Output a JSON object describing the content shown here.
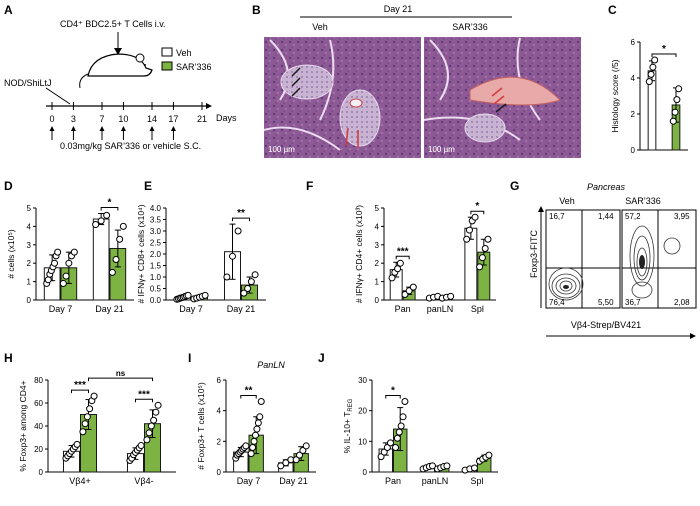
{
  "colors": {
    "veh": "#ffffff",
    "sar": "#7cb342",
    "bar_stroke": "#1a1a1a",
    "dot_fill": "#ffffff",
    "gate": "#000000",
    "hist_red": "#d23c3c"
  },
  "panel_a": {
    "letter": "A",
    "injection": "CD4⁺ BDC2.5+ T Cells i.v.",
    "strain": "NOD/ShiLtJ",
    "legend": [
      {
        "label": "Veh",
        "color": "#ffffff"
      },
      {
        "label": "SAR’336",
        "color": "#7cb342"
      }
    ],
    "timeline_days": [
      "0",
      "3",
      "7",
      "10",
      "14",
      "17",
      "21"
    ],
    "days_label": "Days",
    "dose": "0.03mg/kg SAR’336 or vehicle S.C."
  },
  "panel_b": {
    "letter": "B",
    "header": "Day 21",
    "veh_label": "Veh",
    "sar_label": "SAR’336",
    "scalebar": "100 µm"
  },
  "panel_g": {
    "letter": "G",
    "title": "Pancreas",
    "veh_label": "Veh",
    "sar_label": "SAR’336",
    "ylabel": "Foxp3-FITC",
    "xlabel": "Vβ4-Strep/BV421",
    "veh_quadrants": [
      "16,7",
      "1,44",
      "76,4",
      "5,50"
    ],
    "sar_quadrants": [
      "57,2",
      "3,95",
      "36,7",
      "2,08"
    ]
  },
  "chart_data": [
    {
      "id": "C",
      "type": "bar",
      "ylabel": "Histology score (/5)",
      "ylim": [
        0,
        6
      ],
      "yticks": [
        "0",
        "2",
        "4",
        "6"
      ],
      "categories": [
        ""
      ],
      "groups": [
        [
          {
            "value": 4.4,
            "sd": 0.55,
            "color": "#ffffff",
            "points": [
              3.8,
              4.2,
              4.6,
              5.0
            ]
          }
        ],
        [
          {
            "value": 2.5,
            "sd": 0.95,
            "color": "#7cb342",
            "points": [
              1.6,
              2.1,
              2.8,
              3.4
            ]
          }
        ]
      ],
      "annotations": [
        {
          "text": "*",
          "between": [
            [
              0,
              0
            ],
            [
              1,
              0
            ]
          ]
        }
      ]
    },
    {
      "id": "D",
      "type": "bar",
      "ylabel": "# cells (x10⁵)",
      "ylim": [
        0,
        5
      ],
      "yticks": [
        "0",
        "1",
        "2",
        "3",
        "4",
        "5"
      ],
      "categories": [
        "Day 7",
        "Day 21"
      ],
      "groups": [
        [
          {
            "value": 1.75,
            "sd": 0.7,
            "color": "#ffffff",
            "points": [
              0.9,
              1.1,
              1.4,
              1.6,
              1.8,
              2.0,
              2.4,
              2.6
            ]
          },
          {
            "value": 1.75,
            "sd": 0.85,
            "color": "#7cb342",
            "points": [
              0.9,
              1.3,
              2.0,
              2.4,
              2.6
            ]
          }
        ],
        [
          {
            "value": 4.4,
            "sd": 0.3,
            "color": "#ffffff",
            "points": [
              4.1,
              4.3,
              4.6
            ]
          },
          {
            "value": 2.8,
            "sd": 1.0,
            "color": "#7cb342",
            "points": [
              1.5,
              2.2,
              3.3,
              4.0
            ]
          }
        ]
      ],
      "annotations": [
        {
          "text": "*",
          "between": [
            [
              1,
              0
            ],
            [
              1,
              1
            ]
          ]
        }
      ]
    },
    {
      "id": "E",
      "type": "bar",
      "ylabel": "# IFNγ+ CD8+ cells (x10⁴)",
      "ylim": [
        0,
        4
      ],
      "yticks": [
        "0.0",
        "0.5",
        "1.0",
        "1.5",
        "2.0",
        "2.5",
        "3.0",
        "3.5",
        "4.0"
      ],
      "categories": [
        "Day 7",
        "Day 21"
      ],
      "groups": [
        [
          {
            "value": 0.1,
            "sd": 0.06,
            "color": "#ffffff",
            "points": [
              0.03,
              0.05,
              0.08,
              0.1,
              0.12,
              0.15,
              0.18,
              0.2
            ]
          },
          {
            "value": 0.12,
            "sd": 0.07,
            "color": "#7cb342",
            "points": [
              0.05,
              0.08,
              0.12,
              0.16,
              0.2
            ]
          }
        ],
        [
          {
            "value": 2.1,
            "sd": 1.2,
            "color": "#ffffff",
            "points": [
              1.0,
              1.9,
              3.0
            ]
          },
          {
            "value": 0.65,
            "sd": 0.35,
            "color": "#7cb342",
            "points": [
              0.3,
              0.5,
              0.8,
              1.1
            ]
          }
        ]
      ],
      "annotations": [
        {
          "text": "**",
          "between": [
            [
              1,
              0
            ],
            [
              1,
              1
            ]
          ]
        }
      ]
    },
    {
      "id": "F",
      "type": "bar",
      "ylabel": "# IFNγ+ CD4+ cells (x10³)",
      "ylim": [
        0,
        5
      ],
      "yticks": [
        "0",
        "1",
        "2",
        "3",
        "4",
        "5"
      ],
      "categories": [
        "Pan",
        "panLN",
        "Spl"
      ],
      "groups": [
        [
          {
            "value": 1.65,
            "sd": 0.4,
            "color": "#ffffff",
            "points": [
              1.2,
              1.5,
              1.7,
              2.0
            ]
          },
          {
            "value": 0.5,
            "sd": 0.2,
            "color": "#7cb342",
            "points": [
              0.3,
              0.5,
              0.7
            ]
          }
        ],
        [
          {
            "value": 0.15,
            "sd": 0.05,
            "color": "#ffffff",
            "points": [
              0.1,
              0.15,
              0.2
            ]
          },
          {
            "value": 0.15,
            "sd": 0.05,
            "color": "#7cb342",
            "points": [
              0.1,
              0.15,
              0.2
            ]
          }
        ],
        [
          {
            "value": 3.9,
            "sd": 0.6,
            "color": "#ffffff",
            "points": [
              3.3,
              3.8,
              4.3,
              4.5
            ]
          },
          {
            "value": 2.6,
            "sd": 0.7,
            "color": "#7cb342",
            "points": [
              1.8,
              2.3,
              2.8,
              3.3
            ]
          }
        ]
      ],
      "annotations": [
        {
          "text": "***",
          "between": [
            [
              0,
              0
            ],
            [
              0,
              1
            ]
          ]
        },
        {
          "text": "*",
          "between": [
            [
              2,
              0
            ],
            [
              2,
              1
            ]
          ]
        }
      ]
    },
    {
      "id": "H",
      "type": "bar",
      "ylabel": "% Foxp3+ among CD4+",
      "ylim": [
        0,
        80
      ],
      "yticks": [
        "0",
        "20",
        "40",
        "60",
        "80"
      ],
      "categories": [
        "Vβ4+",
        "Vβ4-"
      ],
      "groups": [
        [
          {
            "value": 18,
            "sd": 5,
            "color": "#ffffff",
            "points": [
              12,
              14,
              16,
              18,
              20,
              22,
              24
            ]
          },
          {
            "value": 50,
            "sd": 13,
            "color": "#7cb342",
            "points": [
              35,
              42,
              48,
              55,
              62,
              66
            ]
          }
        ],
        [
          {
            "value": 16,
            "sd": 5,
            "color": "#ffffff",
            "points": [
              10,
              12,
              15,
              17,
              19,
              21,
              23
            ]
          },
          {
            "value": 42,
            "sd": 12,
            "color": "#7cb342",
            "points": [
              28,
              34,
              40,
              45,
              52,
              58
            ]
          }
        ]
      ],
      "annotations": [
        {
          "text": "***",
          "between": [
            [
              0,
              0
            ],
            [
              0,
              1
            ]
          ]
        },
        {
          "text": "***",
          "between": [
            [
              1,
              0
            ],
            [
              1,
              1
            ]
          ]
        },
        {
          "text": "ns",
          "between": [
            [
              0,
              1
            ],
            [
              1,
              1
            ]
          ]
        }
      ]
    },
    {
      "id": "I",
      "type": "bar",
      "title": "PanLN",
      "ylabel": "# Foxp3+ T cells (x10⁵)",
      "ylim": [
        0,
        6
      ],
      "yticks": [
        "0",
        "2",
        "4",
        "6"
      ],
      "categories": [
        "Day 7",
        "Day 21"
      ],
      "groups": [
        [
          {
            "value": 1.3,
            "sd": 0.3,
            "color": "#ffffff",
            "points": [
              0.9,
              1.1,
              1.2,
              1.3,
              1.4,
              1.5,
              1.6,
              1.7
            ]
          },
          {
            "value": 2.4,
            "sd": 1.2,
            "color": "#7cb342",
            "points": [
              1.2,
              1.6,
              2.0,
              2.4,
              2.8,
              3.2,
              3.6,
              4.6
            ]
          }
        ],
        [
          {
            "value": 0.6,
            "sd": 0.2,
            "color": "#ffffff",
            "points": [
              0.4,
              0.6,
              0.8
            ]
          },
          {
            "value": 1.2,
            "sd": 0.45,
            "color": "#7cb342",
            "points": [
              0.8,
              1.1,
              1.4,
              1.7
            ]
          }
        ]
      ],
      "annotations": [
        {
          "text": "**",
          "between": [
            [
              0,
              0
            ],
            [
              0,
              1
            ]
          ]
        }
      ]
    },
    {
      "id": "J",
      "type": "bar",
      "ylabel": "% IL-10+ T_REG",
      "ylim": [
        0,
        30
      ],
      "yticks": [
        "0",
        "10",
        "20",
        "30"
      ],
      "categories": [
        "Pan",
        "panLN",
        "Spl"
      ],
      "groups": [
        [
          {
            "value": 7.5,
            "sd": 2,
            "color": "#ffffff",
            "points": [
              5,
              6.5,
              8,
              9.5
            ]
          },
          {
            "value": 14,
            "sd": 7,
            "color": "#7cb342",
            "points": [
              8,
              11,
              13,
              15,
              18,
              23
            ]
          }
        ],
        [
          {
            "value": 1.5,
            "sd": 0.5,
            "color": "#ffffff",
            "points": [
              1.0,
              1.4,
              1.8,
              2.0
            ]
          },
          {
            "value": 1.5,
            "sd": 0.5,
            "color": "#7cb342",
            "points": [
              1.0,
              1.4,
              1.8,
              2.0
            ]
          }
        ],
        [
          {
            "value": 1.0,
            "sd": 0.4,
            "color": "#ffffff",
            "points": [
              0.6,
              1.0,
              1.3
            ]
          },
          {
            "value": 4.5,
            "sd": 1.0,
            "color": "#7cb342",
            "points": [
              3.5,
              4.2,
              4.8,
              5.5
            ]
          }
        ]
      ],
      "annotations": [
        {
          "text": "*",
          "between": [
            [
              0,
              0
            ],
            [
              0,
              1
            ]
          ]
        }
      ]
    }
  ]
}
